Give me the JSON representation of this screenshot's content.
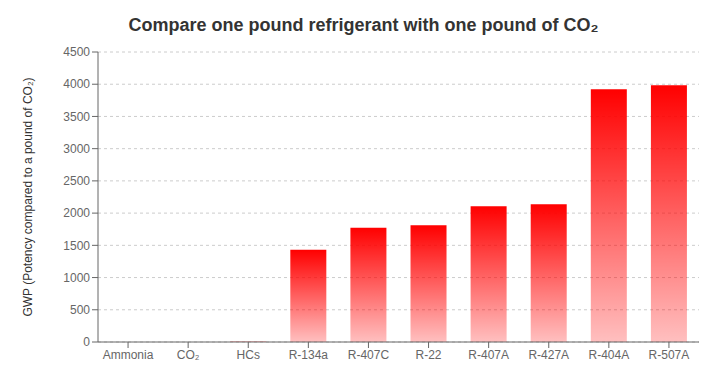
{
  "chart_data": {
    "type": "bar",
    "title": "Compare one pound refrigerant with one pound of CO₂",
    "ylabel": "GWP (Potency compared to a pound of CO₂)",
    "categories": [
      "Ammonia",
      "CO₂",
      "HCs",
      "R-134a",
      "R-407C",
      "R-22",
      "R-407A",
      "R-427A",
      "R-404A",
      "R-507A"
    ],
    "values": [
      0,
      1,
      3,
      1430,
      1774,
      1810,
      2107,
      2138,
      3922,
      3985
    ],
    "color": "#ff0000",
    "ylim": [
      0,
      4500
    ],
    "yticks": [
      0,
      500,
      1000,
      1500,
      2000,
      2500,
      3000,
      3500,
      4000,
      4500
    ],
    "grid": true
  }
}
